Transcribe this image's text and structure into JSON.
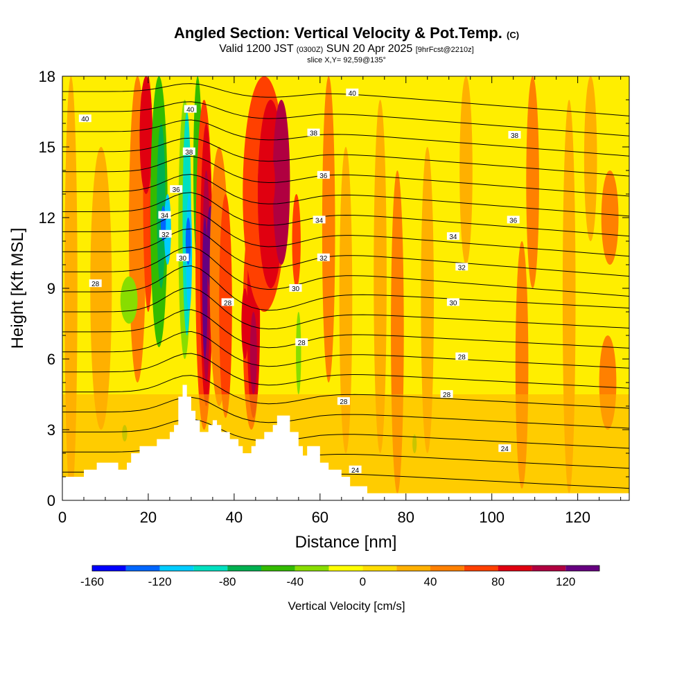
{
  "header": {
    "title_main": "Angled Section: Vertical Velocity & Pot.Temp.",
    "title_tag": "(C)",
    "valid_a": "Valid 1200 JST",
    "valid_b": "(0300Z)",
    "valid_c": "SUN 20 Apr 2025",
    "valid_d": "[9hrFcst@2210z]",
    "slice": "slice X,Y= 92,59@135°"
  },
  "chart_data": {
    "type": "heatmap",
    "xlabel": "Distance [nm]",
    "ylabel": "Height [Kft MSL]",
    "xlim": [
      0,
      132
    ],
    "ylim": [
      0,
      18
    ],
    "xticks": [
      "0",
      "20",
      "40",
      "60",
      "80",
      "100",
      "120"
    ],
    "yticks": [
      "0",
      "3",
      "6",
      "9",
      "12",
      "15",
      "18"
    ],
    "colorbar": {
      "label": "Vertical Velocity [cm/s]",
      "tick_labels": [
        "-160",
        "-120",
        "-80",
        "-40",
        "0",
        "40",
        "80",
        "120"
      ],
      "tick_values": [
        -160,
        -120,
        -80,
        -40,
        0,
        40,
        80,
        120
      ],
      "range": [
        -160,
        140
      ],
      "step": 20,
      "colors": [
        "#0000ff",
        "#0066ff",
        "#00ccff",
        "#00e0c0",
        "#00b050",
        "#33bb00",
        "#88dd00",
        "#ffff00",
        "#ffdd00",
        "#ffb000",
        "#ff8000",
        "#ff4000",
        "#e00010",
        "#b00040",
        "#660080"
      ]
    },
    "contour_field": "Potential temperature",
    "contour_labels": [
      {
        "value": "40",
        "x": 5.3,
        "y": 16.2
      },
      {
        "value": "40",
        "x": 29.8,
        "y": 16.6
      },
      {
        "value": "38",
        "x": 29.5,
        "y": 14.8
      },
      {
        "value": "36",
        "x": 26.5,
        "y": 13.2
      },
      {
        "value": "34",
        "x": 23.8,
        "y": 12.1
      },
      {
        "value": "32",
        "x": 24.0,
        "y": 11.3
      },
      {
        "value": "30",
        "x": 28.0,
        "y": 10.3
      },
      {
        "value": "28",
        "x": 7.7,
        "y": 9.2
      },
      {
        "value": "28",
        "x": 38.5,
        "y": 8.4
      },
      {
        "value": "40",
        "x": 67.5,
        "y": 17.3
      },
      {
        "value": "38",
        "x": 58.5,
        "y": 15.6
      },
      {
        "value": "36",
        "x": 60.8,
        "y": 13.8
      },
      {
        "value": "34",
        "x": 59.8,
        "y": 11.9
      },
      {
        "value": "32",
        "x": 60.8,
        "y": 10.3
      },
      {
        "value": "30",
        "x": 54.3,
        "y": 9.0
      },
      {
        "value": "28",
        "x": 55.7,
        "y": 6.7
      },
      {
        "value": "28",
        "x": 65.5,
        "y": 4.2
      },
      {
        "value": "24",
        "x": 68.2,
        "y": 1.3
      },
      {
        "value": "38",
        "x": 105.3,
        "y": 15.5
      },
      {
        "value": "36",
        "x": 105.0,
        "y": 11.9
      },
      {
        "value": "34",
        "x": 91.0,
        "y": 11.2
      },
      {
        "value": "32",
        "x": 93.0,
        "y": 9.9
      },
      {
        "value": "30",
        "x": 91.0,
        "y": 8.4
      },
      {
        "value": "28",
        "x": 93.0,
        "y": 6.1
      },
      {
        "value": "28",
        "x": 89.5,
        "y": 4.5
      },
      {
        "value": "24",
        "x": 103.0,
        "y": 2.2
      }
    ]
  }
}
